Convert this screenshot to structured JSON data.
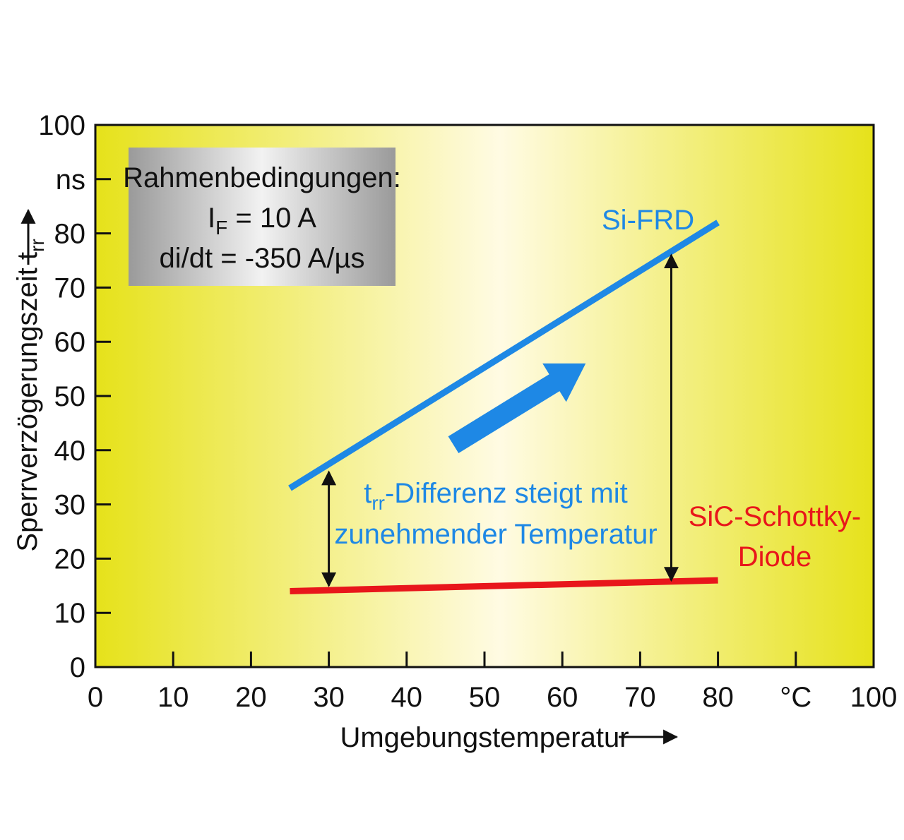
{
  "chart_data": {
    "type": "line",
    "xlabel": "Umgebungstemperatur",
    "ylabel": "Sperrverzögerungszeit t",
    "ylabel_sub": "rr",
    "xlim": [
      0,
      100
    ],
    "ylim": [
      0,
      100
    ],
    "x_ticks": [
      "0",
      "10",
      "20",
      "30",
      "40",
      "50",
      "60",
      "70",
      "80",
      "°C",
      "100"
    ],
    "y_ticks": [
      "0",
      "10",
      "20",
      "30",
      "40",
      "50",
      "60",
      "70",
      "80",
      "ns",
      "100"
    ],
    "grid": false,
    "series": [
      {
        "name": "Si-FRD",
        "color": "#1e88e5",
        "x": [
          25,
          80
        ],
        "y": [
          33,
          82
        ]
      },
      {
        "name": "SiC-Schottky-Diode",
        "color": "#e8161b",
        "x": [
          25,
          80
        ],
        "y": [
          14,
          16
        ]
      }
    ],
    "labels": {
      "si_frd": "Si-FRD",
      "sic_line1": "SiC-Schottky-",
      "sic_line2": "Diode"
    },
    "annotation": {
      "line1_main": "t",
      "line1_sub": "rr",
      "line1_rest": "-Differenz steigt mit",
      "line2": "zunehmender Temperatur",
      "color": "#1e88e5"
    },
    "difference_markers": [
      {
        "x": 30,
        "y_low": 15,
        "y_high": 36
      },
      {
        "x": 74,
        "y_low": 16,
        "y_high": 76
      }
    ],
    "trend_arrow": {
      "from": [
        46,
        41
      ],
      "to": [
        63,
        56
      ]
    },
    "info_box": {
      "title": "Rahmenbedingungen:",
      "if_main": "I",
      "if_sub": "F",
      "if_rest": " = 10 A",
      "didt": "di/dt = -350 A/µs"
    },
    "background": {
      "edge": "#e6e21a",
      "center": "#fffbe3"
    }
  }
}
